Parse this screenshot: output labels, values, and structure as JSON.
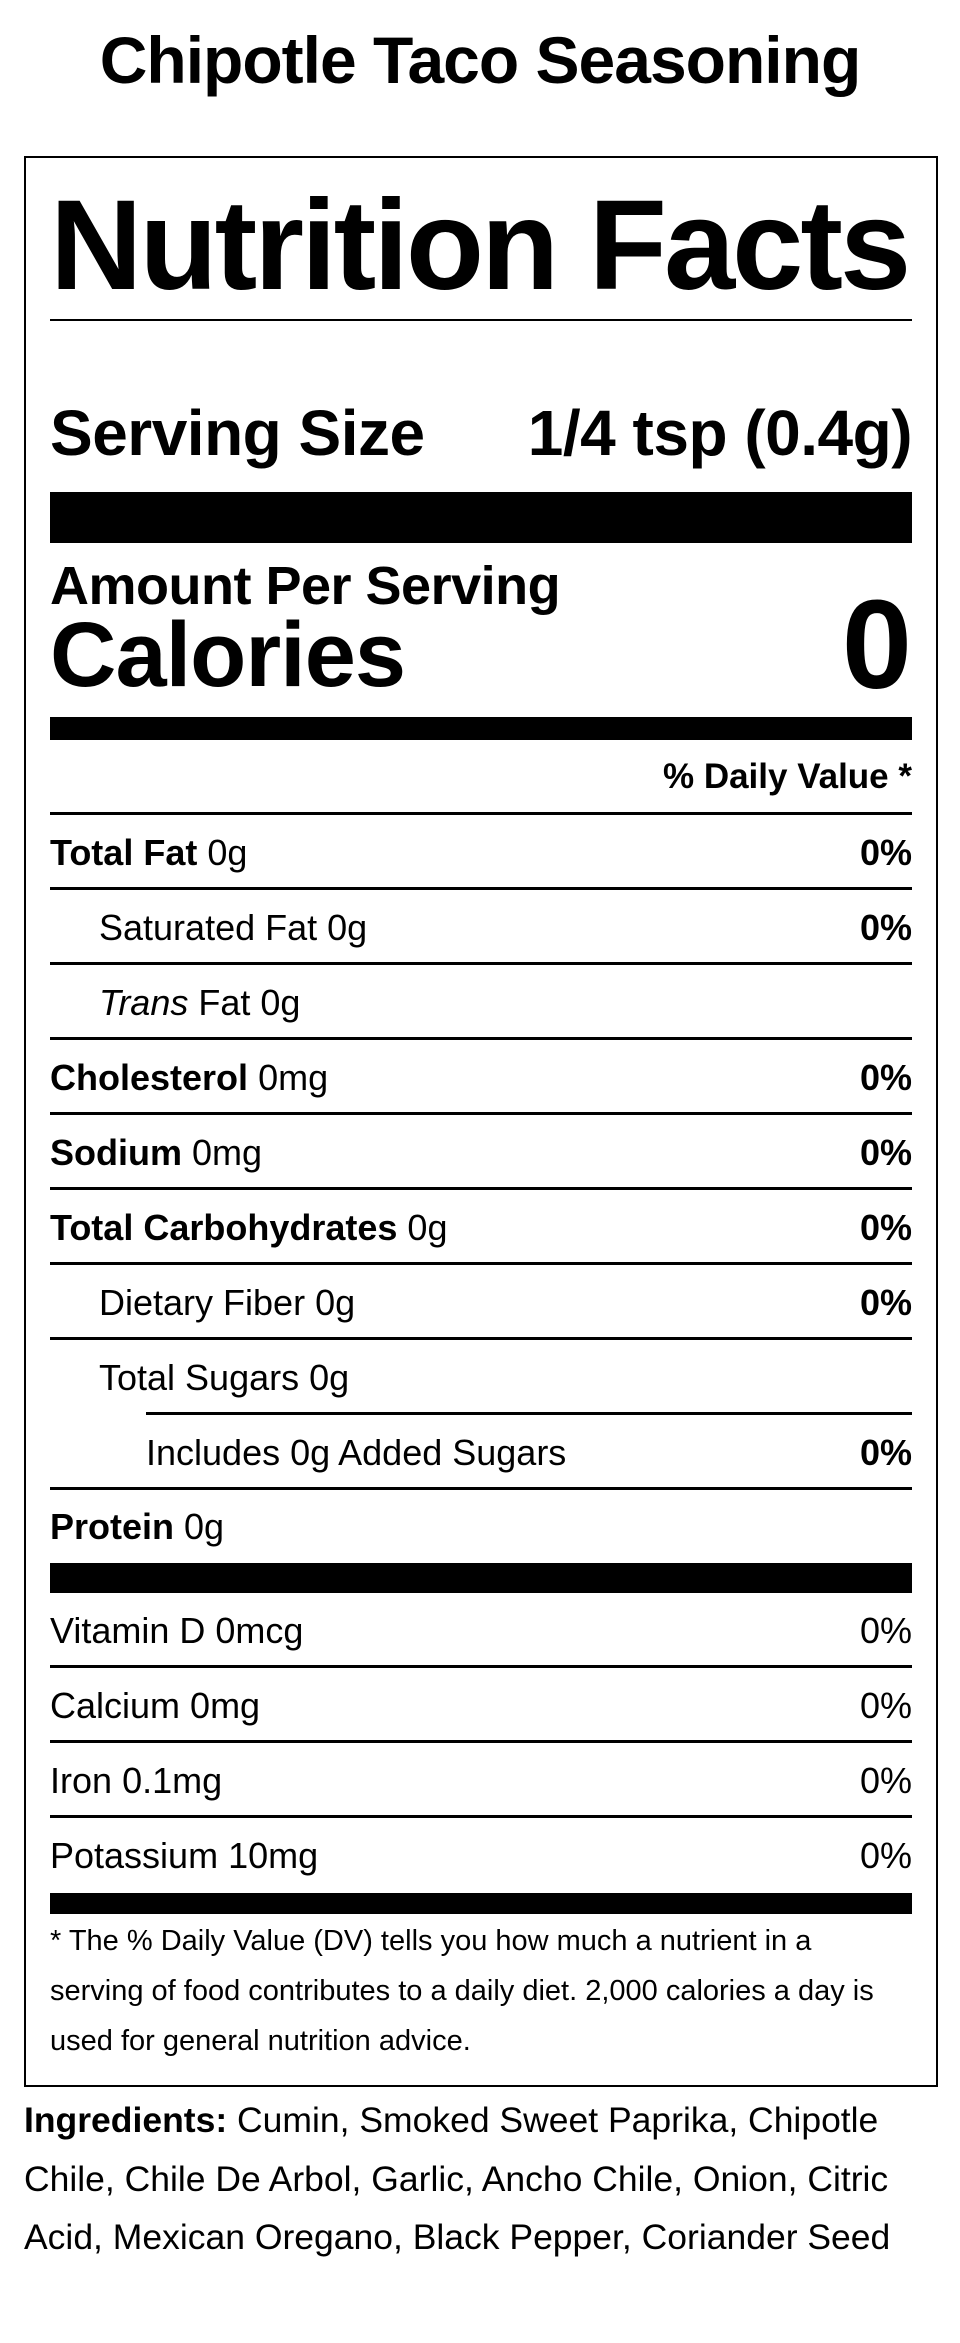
{
  "product_title": "Chipotle Taco Seasoning",
  "label": {
    "heading": "Nutrition Facts",
    "serving_size_label": "Serving Size",
    "serving_size_value": "1/4 tsp (0.4g)",
    "amount_per_serving": "Amount Per Serving",
    "calories_label": "Calories",
    "calories_value": "0",
    "daily_value_header": "% Daily Value *",
    "nutrients": [
      {
        "name": "Total Fat",
        "amount": "0g",
        "dv": "0%"
      },
      {
        "name": "Saturated Fat",
        "amount": "0g",
        "dv": "0%"
      },
      {
        "name": "Trans",
        "name_suffix": "Fat",
        "amount": "0g",
        "dv": ""
      },
      {
        "name": "Cholesterol",
        "amount": "0mg",
        "dv": "0%"
      },
      {
        "name": "Sodium",
        "amount": "0mg",
        "dv": "0%"
      },
      {
        "name": "Total Carbohydrates",
        "amount": "0g",
        "dv": "0%"
      },
      {
        "name": "Dietary Fiber",
        "amount": "0g",
        "dv": "0%"
      },
      {
        "name": "Total Sugars",
        "amount": "0g",
        "dv": ""
      },
      {
        "name": "Includes 0g Added Sugars",
        "amount": "",
        "dv": "0%"
      },
      {
        "name": "Protein",
        "amount": "0g",
        "dv": ""
      }
    ],
    "vitamins": [
      {
        "name": "Vitamin D",
        "amount": "0mcg",
        "dv": "0%"
      },
      {
        "name": "Calcium",
        "amount": "0mg",
        "dv": "0%"
      },
      {
        "name": "Iron",
        "amount": "0.1mg",
        "dv": "0%"
      },
      {
        "name": "Potassium",
        "amount": "10mg",
        "dv": "0%"
      }
    ],
    "footnote": "* The % Daily Value (DV) tells you how much a nutrient in a serving of food contributes to a daily diet. 2,000 calories a day is used for general nutrition advice."
  },
  "ingredients": {
    "label": "Ingredients:",
    "text": "Cumin, Smoked Sweet Paprika, Chipotle Chile, Chile De Arbol, Garlic, Ancho Chile, Onion, Citric Acid, Mexican Oregano, Black Pepper, Coriander Seed"
  }
}
